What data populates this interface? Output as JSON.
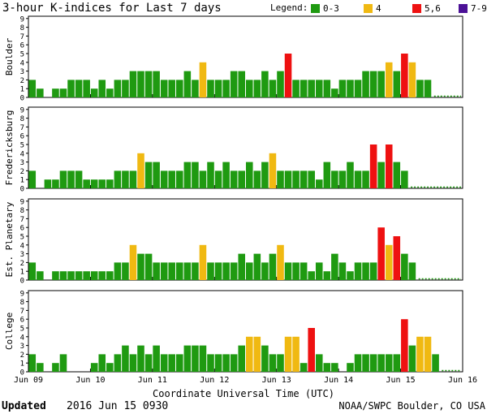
{
  "header": {
    "title": "3-hour K-indices for Last 7 days",
    "legend_label": "Legend:"
  },
  "legend": [
    {
      "label": "0-3",
      "color": "#1f9a11"
    },
    {
      "label": "4",
      "color": "#f0b912"
    },
    {
      "label": "5,6",
      "color": "#ee1111"
    },
    {
      "label": "7-9",
      "color": "#4b1196"
    }
  ],
  "footer": {
    "updated_label": "Updated",
    "updated_value": "2016 Jun 15 0930",
    "credit": "NOAA/SWPC Boulder, CO USA"
  },
  "chart_data": {
    "type": "bar",
    "title": "3-hour K-indices for Last 7 days",
    "xlabel": "Coordinate Universal Time (UTC)",
    "x_ticks": [
      "Jun 09",
      "Jun 10",
      "Jun 11",
      "Jun 12",
      "Jun 13",
      "Jun 14",
      "Jun 15",
      "Jun 16"
    ],
    "y_ticks": [
      "0",
      "1",
      "2",
      "3",
      "4",
      "5",
      "6",
      "7",
      "8",
      "9"
    ],
    "ylim": [
      0,
      9
    ],
    "intervals_per_day": 8,
    "days": 7,
    "color_thresholds": {
      "0-3": "#1f9a11",
      "4": "#f0b912",
      "5,6": "#ee1111",
      "7-9": "#4b1196"
    },
    "series": [
      {
        "name": "Boulder",
        "values": [
          2,
          1,
          0,
          1,
          1,
          2,
          2,
          2,
          1,
          2,
          1,
          2,
          2,
          3,
          3,
          3,
          3,
          2,
          2,
          2,
          3,
          2,
          4,
          2,
          2,
          2,
          3,
          3,
          2,
          2,
          3,
          2,
          3,
          5,
          2,
          2,
          2,
          2,
          2,
          1,
          2,
          2,
          2,
          3,
          3,
          3,
          4,
          3,
          5,
          4,
          2,
          2
        ]
      },
      {
        "name": "Fredericksburg",
        "values": [
          2,
          0,
          1,
          1,
          2,
          2,
          2,
          1,
          1,
          1,
          1,
          2,
          2,
          2,
          4,
          3,
          3,
          2,
          2,
          2,
          3,
          3,
          2,
          3,
          2,
          3,
          2,
          2,
          3,
          2,
          3,
          4,
          2,
          2,
          2,
          2,
          2,
          1,
          3,
          2,
          2,
          3,
          2,
          2,
          5,
          3,
          5,
          3,
          2
        ]
      },
      {
        "name": "Est. Planetary",
        "values": [
          2,
          1,
          0,
          1,
          1,
          1,
          1,
          1,
          1,
          1,
          1,
          2,
          2,
          4,
          3,
          3,
          2,
          2,
          2,
          2,
          2,
          2,
          4,
          2,
          2,
          2,
          2,
          3,
          2,
          3,
          2,
          3,
          4,
          2,
          2,
          2,
          1,
          2,
          1,
          3,
          2,
          1,
          2,
          2,
          2,
          6,
          4,
          5,
          3,
          2
        ]
      },
      {
        "name": "College",
        "values": [
          2,
          1,
          0,
          1,
          2,
          0,
          0,
          0,
          1,
          2,
          1,
          2,
          3,
          2,
          3,
          2,
          3,
          2,
          2,
          2,
          3,
          3,
          3,
          2,
          2,
          2,
          2,
          3,
          4,
          4,
          3,
          2,
          2,
          4,
          4,
          1,
          5,
          2,
          1,
          1,
          0,
          1,
          2,
          2,
          2,
          2,
          2,
          2,
          6,
          3,
          4,
          4,
          2
        ]
      }
    ]
  }
}
